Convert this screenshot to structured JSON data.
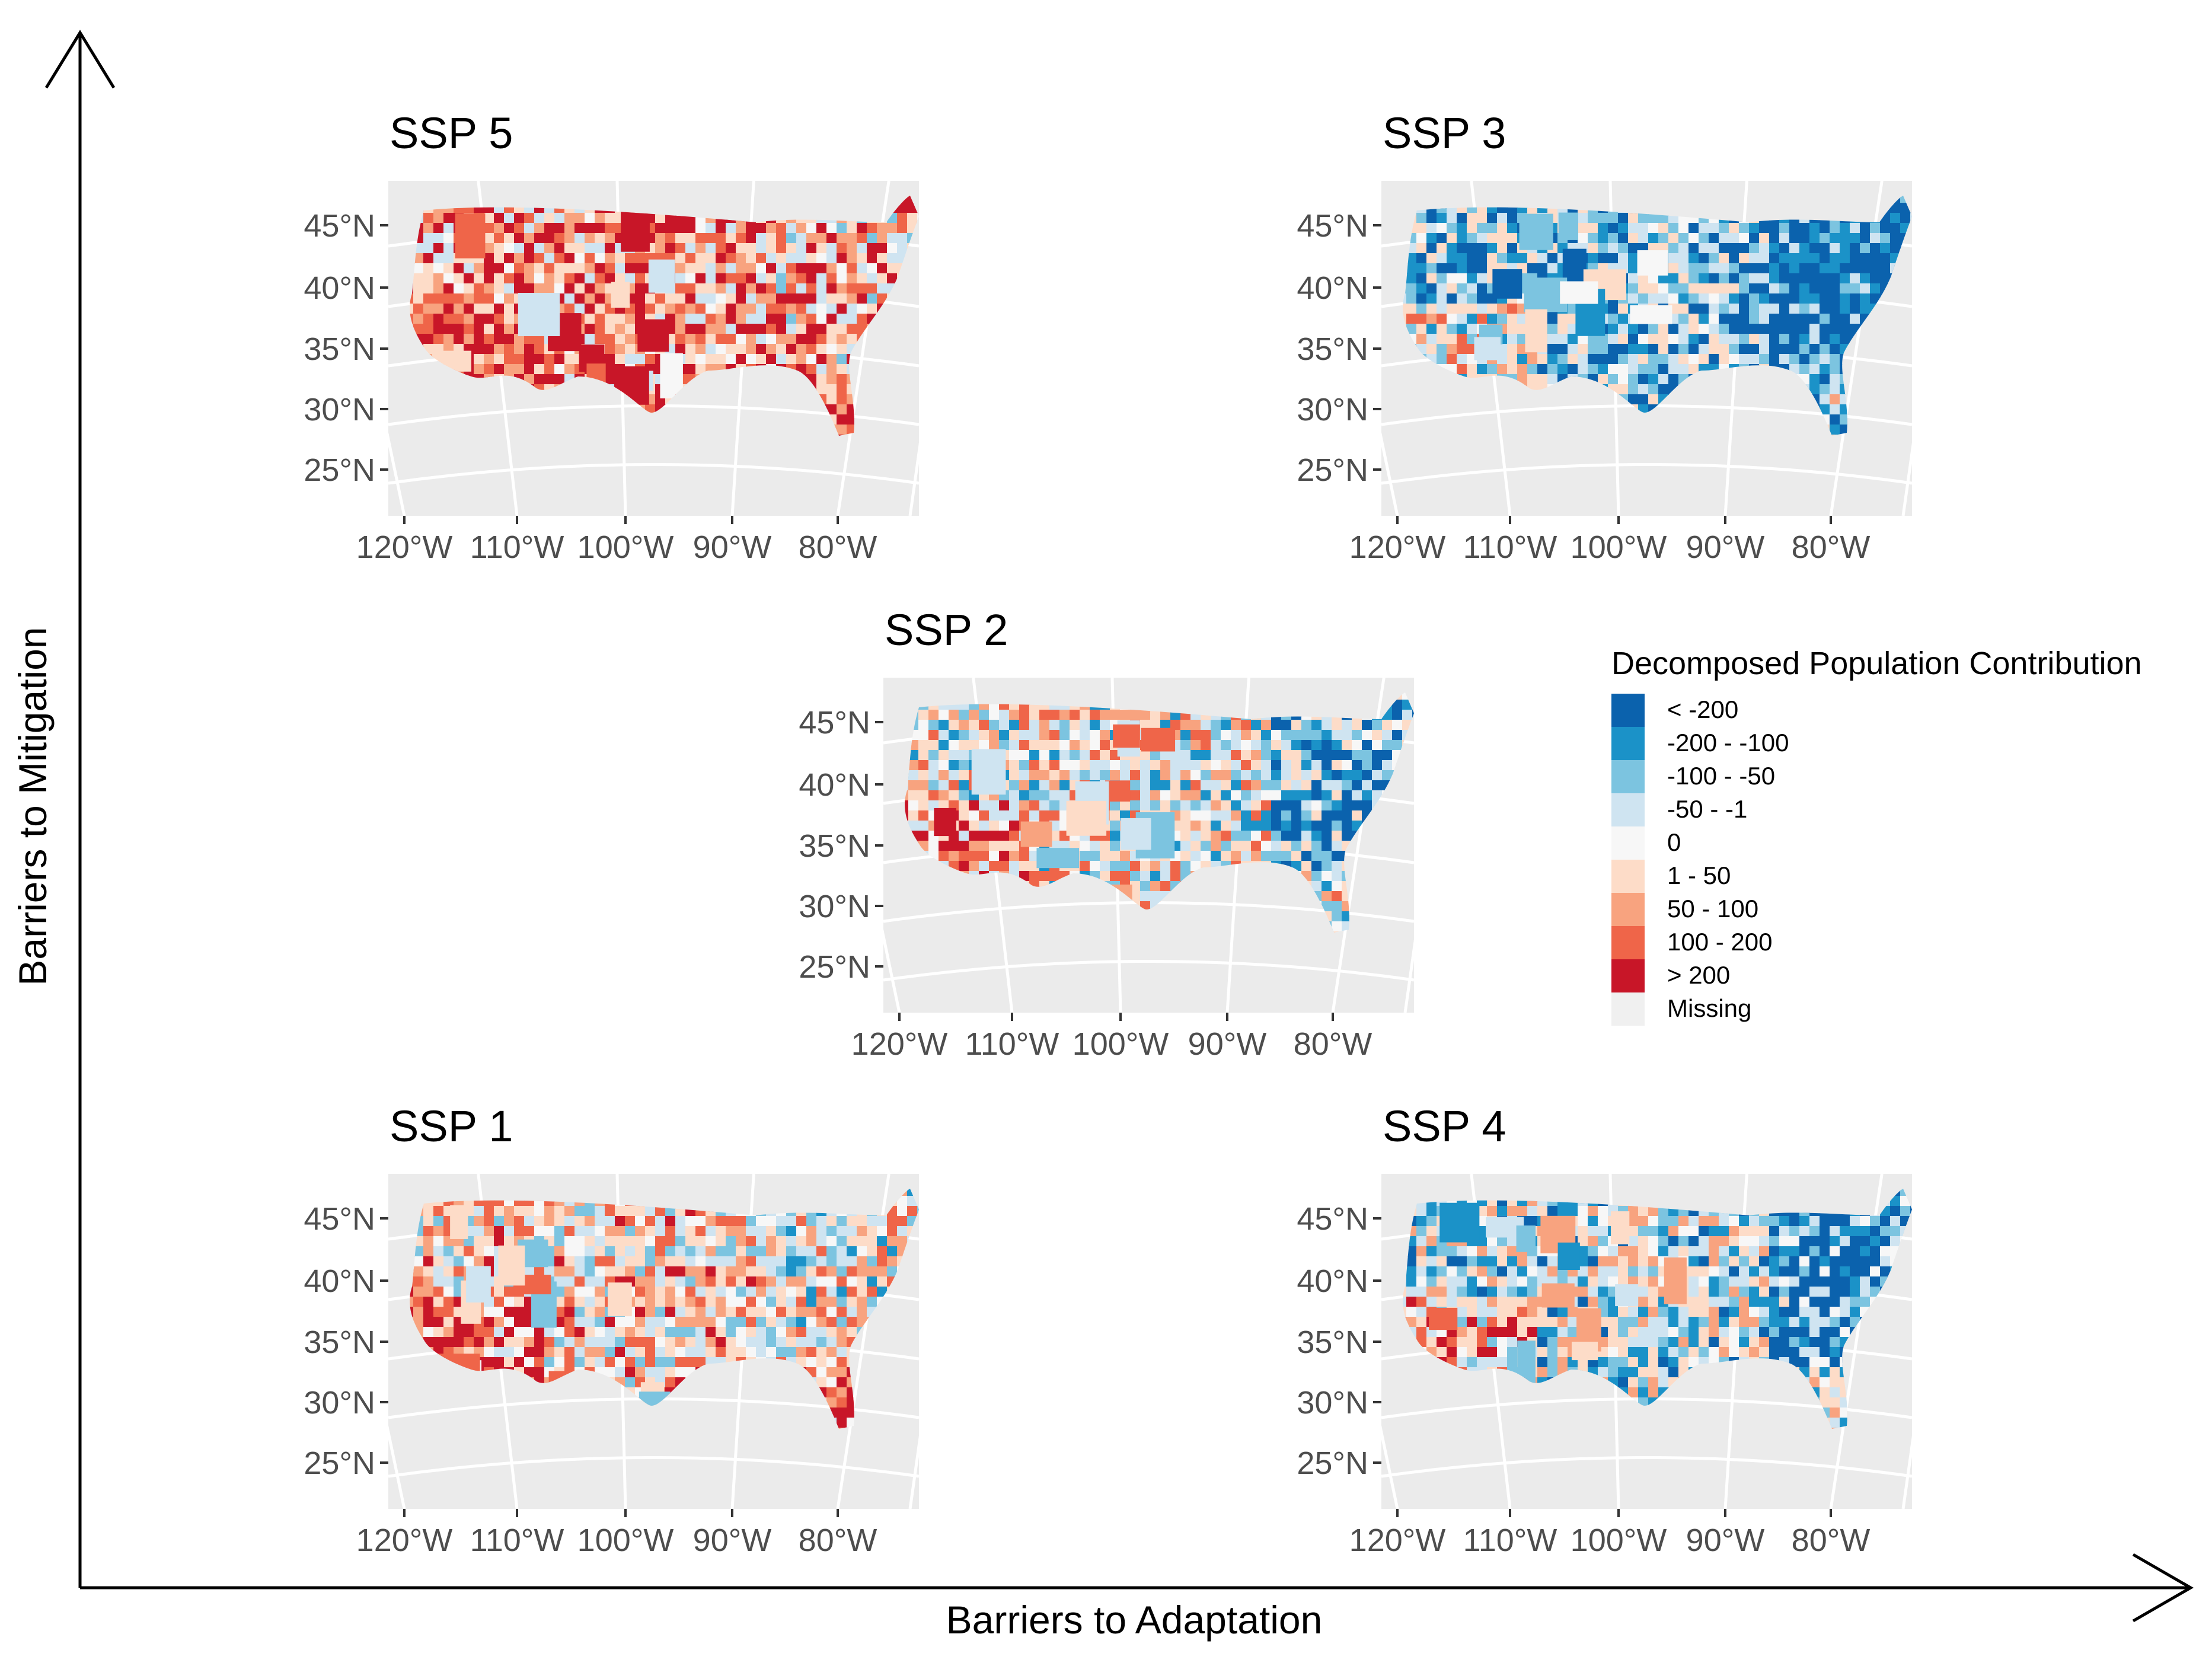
{
  "figure": {
    "x_axis_title": "Barriers to Adaptation",
    "y_axis_title": "Barriers to Mitigation"
  },
  "lat_labels": [
    "45°N",
    "40°N",
    "35°N",
    "30°N",
    "25°N"
  ],
  "lon_labels": [
    "120°W",
    "110°W",
    "100°W",
    "90°W",
    "80°W"
  ],
  "panels": [
    {
      "id": "ssp5",
      "title": "SSP 5",
      "skew": 0.35
    },
    {
      "id": "ssp3",
      "title": "SSP 3",
      "skew": -0.55
    },
    {
      "id": "ssp2",
      "title": "SSP 2",
      "skew": -0.1
    },
    {
      "id": "ssp1",
      "title": "SSP 1",
      "skew": 0.05
    },
    {
      "id": "ssp4",
      "title": "SSP 4",
      "skew": -0.3
    }
  ],
  "legend": {
    "title": "Decomposed Population Contribution",
    "items": [
      {
        "label": "< -200",
        "color": "#0b62ad"
      },
      {
        "label": "-200 - -100",
        "color": "#1b92c8"
      },
      {
        "label": "-100 - -50",
        "color": "#7cc4e0"
      },
      {
        "label": "-50 - -1",
        "color": "#cfe4f1"
      },
      {
        "label": "0",
        "color": "#f7f7f7"
      },
      {
        "label": "1 - 50",
        "color": "#fddcc8"
      },
      {
        "label": "50 - 100",
        "color": "#f8a37f"
      },
      {
        "label": "100 - 200",
        "color": "#ef6549"
      },
      {
        "label": "> 200",
        "color": "#c81628"
      },
      {
        "label": "Missing",
        "color": "#f0f0f0"
      }
    ]
  }
}
